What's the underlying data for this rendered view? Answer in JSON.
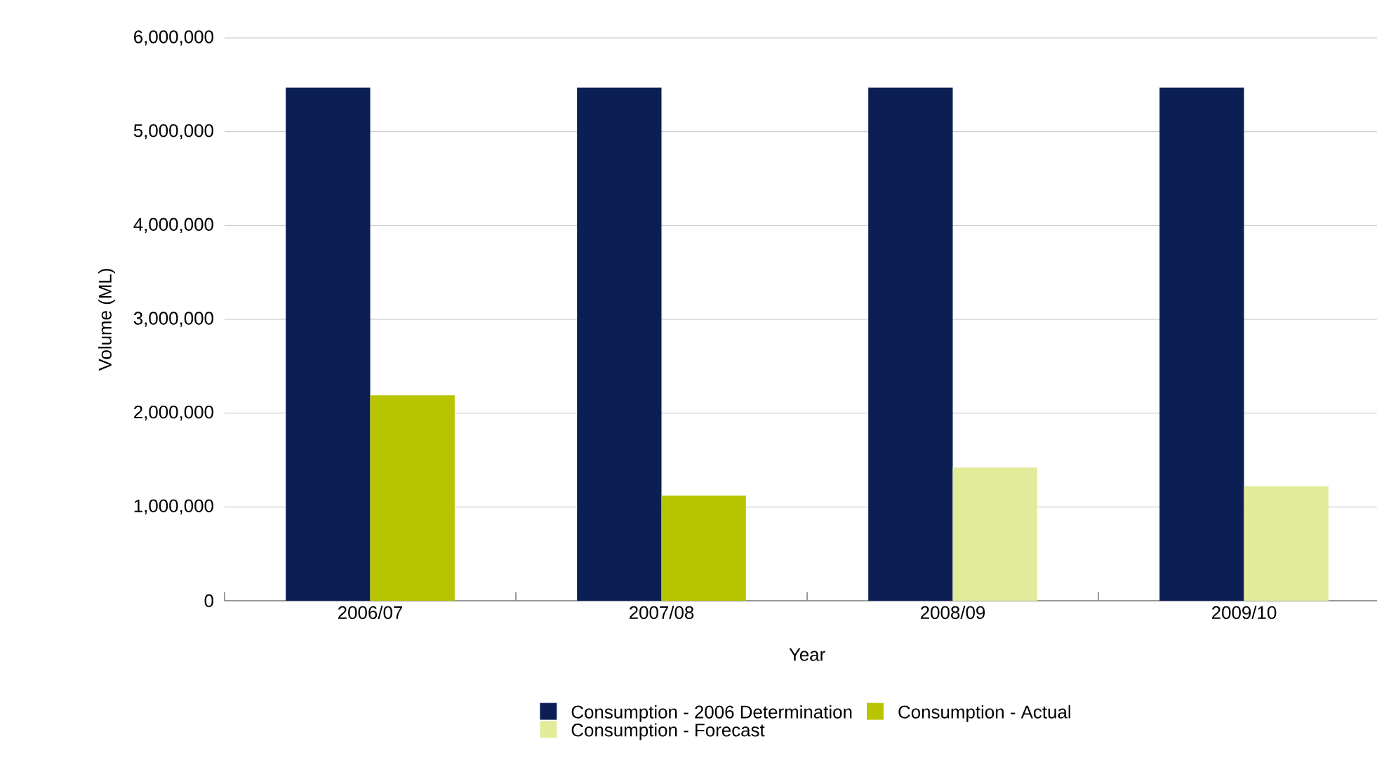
{
  "chart_data": {
    "type": "bar",
    "xlabel": "Year",
    "ylabel": "Volume (ML)",
    "categories": [
      "2006/07",
      "2007/08",
      "2008/09",
      "2009/10"
    ],
    "series": [
      {
        "name": "Consumption - 2006 Determination",
        "color": "#0c1f55",
        "values": [
          5470000,
          5470000,
          5470000,
          5470000
        ]
      },
      {
        "name": "Consumption - Actual",
        "color": "#b8c400",
        "values": [
          2190000,
          1120000,
          null,
          null
        ]
      },
      {
        "name": "Consumption - Forecast",
        "color": "#e2eb9a",
        "values": [
          null,
          null,
          1420000,
          1220000
        ]
      }
    ],
    "ylim": [
      0,
      6000000
    ],
    "yticks": [
      {
        "value": 0,
        "label": "0"
      },
      {
        "value": 1000000,
        "label": "1,000,000"
      },
      {
        "value": 2000000,
        "label": "2,000,000"
      },
      {
        "value": 3000000,
        "label": "3,000,000"
      },
      {
        "value": 4000000,
        "label": "4,000,000"
      },
      {
        "value": 5000000,
        "label": "5,000,000"
      },
      {
        "value": 6000000,
        "label": "6,000,000"
      }
    ],
    "grid": "y",
    "legend": "bottom"
  }
}
